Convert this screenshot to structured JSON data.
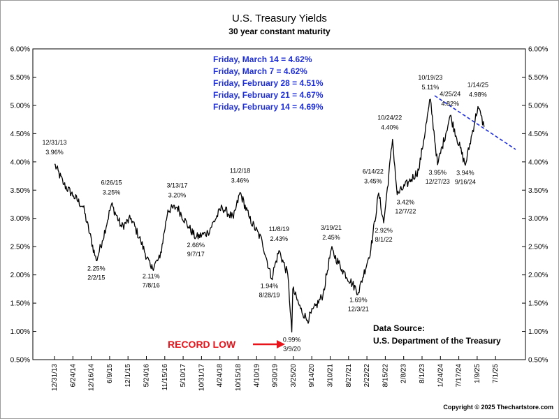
{
  "chart_data": {
    "type": "line",
    "title": "U.S. Treasury Yields",
    "subtitle": "30 year constant maturity",
    "ylim": [
      0.5,
      6.0
    ],
    "y_tick_labels": [
      "0.50%",
      "1.00%",
      "1.50%",
      "2.00%",
      "2.50%",
      "3.00%",
      "3.50%",
      "4.00%",
      "4.50%",
      "5.00%",
      "5.50%",
      "6.00%"
    ],
    "x_tick_labels": [
      "12/31/13",
      "6/24/14",
      "12/16/14",
      "6/9/15",
      "12/1/15",
      "5/24/16",
      "11/15/16",
      "5/10/17",
      "10/31/17",
      "4/24/18",
      "10/15/18",
      "4/10/19",
      "9/30/19",
      "3/25/20",
      "9/14/20",
      "3/10/21",
      "8/27/21",
      "2/22/22",
      "8/15/22",
      "2/8/23",
      "8/1/23",
      "1/24/24",
      "7/17/24",
      "1/9/25",
      "7/1/25"
    ],
    "series": [
      {
        "values": [
          {
            "x": "12/31/13",
            "y": 3.96
          },
          {
            "x": "3/31/14",
            "y": 3.6
          },
          {
            "x": "6/30/14",
            "y": 3.4
          },
          {
            "x": "9/30/14",
            "y": 3.2
          },
          {
            "x": "2/2/15",
            "y": 2.25
          },
          {
            "x": "3/31/15",
            "y": 2.6
          },
          {
            "x": "6/26/15",
            "y": 3.25
          },
          {
            "x": "9/30/15",
            "y": 2.85
          },
          {
            "x": "12/31/15",
            "y": 3.0
          },
          {
            "x": "3/31/16",
            "y": 2.6
          },
          {
            "x": "7/8/16",
            "y": 2.11
          },
          {
            "x": "9/30/16",
            "y": 2.3
          },
          {
            "x": "12/15/16",
            "y": 3.15
          },
          {
            "x": "3/13/17",
            "y": 3.2
          },
          {
            "x": "6/30/17",
            "y": 2.85
          },
          {
            "x": "9/7/17",
            "y": 2.66
          },
          {
            "x": "12/31/17",
            "y": 2.75
          },
          {
            "x": "5/15/18",
            "y": 3.2
          },
          {
            "x": "8/31/18",
            "y": 3.0
          },
          {
            "x": "11/2/18",
            "y": 3.46
          },
          {
            "x": "1/31/19",
            "y": 3.0
          },
          {
            "x": "5/31/19",
            "y": 2.6
          },
          {
            "x": "8/28/19",
            "y": 1.94
          },
          {
            "x": "11/8/19",
            "y": 2.43
          },
          {
            "x": "1/31/20",
            "y": 2.0
          },
          {
            "x": "3/9/20",
            "y": 0.99
          },
          {
            "x": "3/18/20",
            "y": 1.75
          },
          {
            "x": "5/31/20",
            "y": 1.4
          },
          {
            "x": "8/4/20",
            "y": 1.2
          },
          {
            "x": "12/31/20",
            "y": 1.65
          },
          {
            "x": "3/19/21",
            "y": 2.45
          },
          {
            "x": "6/30/21",
            "y": 2.1
          },
          {
            "x": "12/3/21",
            "y": 1.69
          },
          {
            "x": "3/31/22",
            "y": 2.45
          },
          {
            "x": "6/14/22",
            "y": 3.45
          },
          {
            "x": "8/1/22",
            "y": 2.92
          },
          {
            "x": "10/24/22",
            "y": 4.4
          },
          {
            "x": "12/7/22",
            "y": 3.42
          },
          {
            "x": "3/31/23",
            "y": 3.65
          },
          {
            "x": "6/30/23",
            "y": 3.85
          },
          {
            "x": "10/19/23",
            "y": 5.11
          },
          {
            "x": "12/27/23",
            "y": 3.95
          },
          {
            "x": "4/25/24",
            "y": 4.82
          },
          {
            "x": "9/16/24",
            "y": 3.94
          },
          {
            "x": "1/14/25",
            "y": 4.98
          },
          {
            "x": "3/14/25",
            "y": 4.62
          }
        ]
      }
    ],
    "annotations": [
      {
        "date": "12/31/13",
        "value": "3.96%"
      },
      {
        "date": "2/2/15",
        "value": "2.25%"
      },
      {
        "date": "6/26/15",
        "value": "3.25%"
      },
      {
        "date": "7/8/16",
        "value": "2.11%"
      },
      {
        "date": "3/13/17",
        "value": "3.20%"
      },
      {
        "date": "9/7/17",
        "value": "2.66%"
      },
      {
        "date": "11/2/18",
        "value": "3.46%"
      },
      {
        "date": "8/28/19",
        "value": "1.94%"
      },
      {
        "date": "11/8/19",
        "value": "2.43%"
      },
      {
        "date": "3/9/20",
        "value": "0.99%"
      },
      {
        "date": "3/19/21",
        "value": "2.45%"
      },
      {
        "date": "12/3/21",
        "value": "1.69%"
      },
      {
        "date": "6/14/22",
        "value": "3.45%"
      },
      {
        "date": "8/1/22",
        "value": "2.92%"
      },
      {
        "date": "10/24/22",
        "value": "4.40%"
      },
      {
        "date": "12/7/22",
        "value": "3.42%"
      },
      {
        "date": "10/19/23",
        "value": "5.11%"
      },
      {
        "date": "12/27/23",
        "value": "3.95%"
      },
      {
        "date": "4/25/24",
        "value": "4.82%"
      },
      {
        "date": "9/16/24",
        "value": "3.94%"
      },
      {
        "date": "1/14/25",
        "value": "4.98%"
      }
    ],
    "weekly_readings": [
      "Friday, March 14 = 4.62%",
      "Friday, March 7 = 4.62%",
      "Friday, February 28 = 4.51%",
      "Friday, February 21 = 4.67%",
      "Friday, February 14 = 4.69%"
    ],
    "record_low_label": "RECORD LOW",
    "source_label": "Data Source:",
    "source_name": "U.S. Department of the Treasury",
    "copyright": "Copyright © 2025 Thechartstore.com",
    "colors": {
      "line": "#000000",
      "weekly_text": "#1f2fd6",
      "record_low": "#e8141b",
      "trendline": "#1f2fd6"
    }
  }
}
